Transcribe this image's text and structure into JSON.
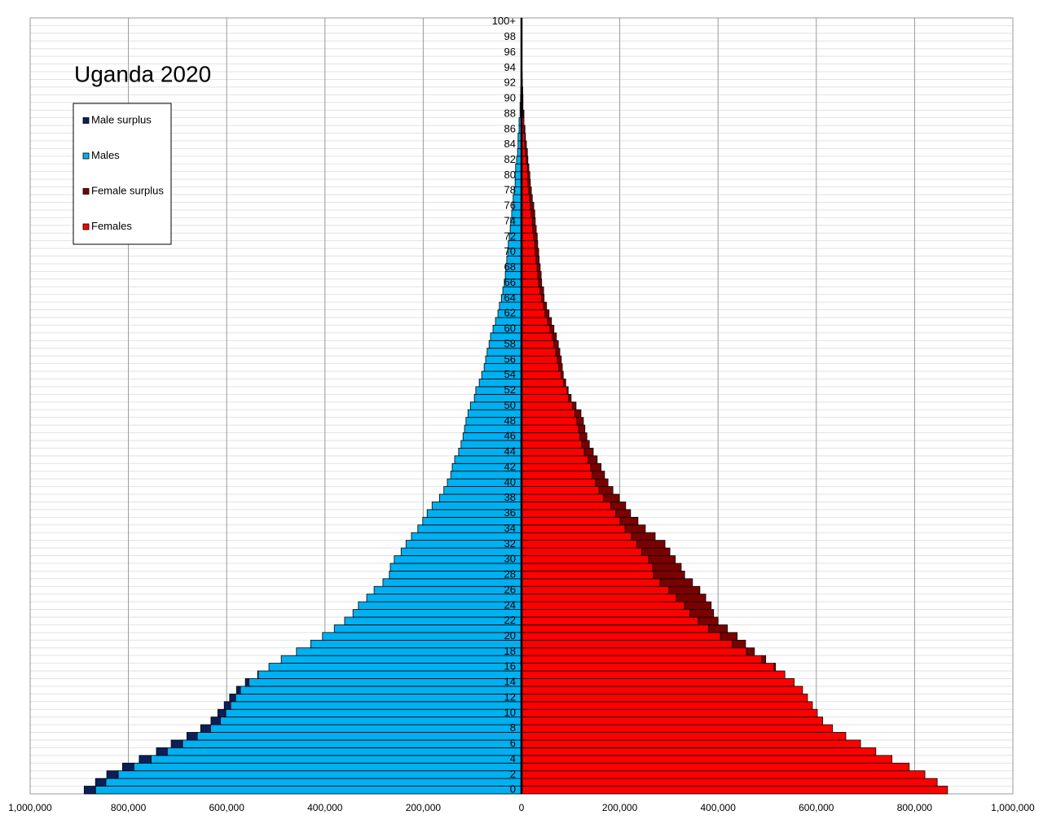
{
  "chart_data": {
    "type": "pyramid",
    "title": "Uganda 2020",
    "categories": [
      "0",
      null,
      "2",
      null,
      "4",
      null,
      "6",
      null,
      "8",
      null,
      "10",
      null,
      "12",
      null,
      "14",
      null,
      "16",
      null,
      "18",
      null,
      "20",
      null,
      "22",
      null,
      "24",
      null,
      "26",
      null,
      "28",
      null,
      "30",
      null,
      "32",
      null,
      "34",
      null,
      "36",
      null,
      "38",
      null,
      "40",
      null,
      "42",
      null,
      "44",
      null,
      "46",
      null,
      "48",
      null,
      "50",
      null,
      "52",
      null,
      "54",
      null,
      "56",
      null,
      "58",
      null,
      "60",
      null,
      "62",
      null,
      "64",
      null,
      "66",
      null,
      "68",
      null,
      "70",
      null,
      "72",
      null,
      "74",
      null,
      "76",
      null,
      "78",
      null,
      "80",
      null,
      "82",
      null,
      "84",
      null,
      "86",
      null,
      "88",
      null,
      "90",
      null,
      "92",
      null,
      "94",
      null,
      "96",
      null,
      "98",
      null,
      "100+"
    ],
    "series": [
      {
        "name": "Male surplus",
        "color": "#0a1f5c",
        "side": "left",
        "values": [
          23000,
          21000,
          23000,
          23000,
          24000,
          22000,
          23000,
          21000,
          20000,
          19000,
          16000,
          13000,
          12000,
          8000,
          7000,
          1000,
          0,
          0,
          0,
          0,
          0,
          0,
          0,
          0,
          0,
          0,
          0,
          0,
          0,
          0,
          0,
          0,
          0,
          0,
          0,
          0,
          0,
          0,
          0,
          0,
          0,
          0,
          0,
          0,
          0,
          0,
          0,
          0,
          0,
          0,
          0,
          0,
          0,
          0,
          0,
          0,
          0,
          0,
          0,
          0,
          0,
          0,
          0,
          0,
          0,
          0,
          0,
          0,
          0,
          0,
          0,
          0,
          0,
          0,
          0,
          0,
          0,
          0,
          0,
          0,
          0,
          0,
          0,
          0,
          0,
          0,
          0,
          0,
          0,
          0,
          0,
          0,
          0,
          0,
          0,
          0,
          0,
          0,
          0,
          0,
          0
        ]
      },
      {
        "name": "Males",
        "color": "#00b0f0",
        "side": "left",
        "values": [
          867000,
          846000,
          821000,
          789000,
          754000,
          721000,
          690000,
          660000,
          633000,
          613000,
          602000,
          592000,
          582000,
          572000,
          555000,
          536000,
          514000,
          489000,
          458000,
          429000,
          405000,
          381000,
          360000,
          343000,
          332000,
          315000,
          300000,
          282000,
          269000,
          267000,
          259000,
          245000,
          235000,
          224000,
          211000,
          201000,
          192000,
          182000,
          167000,
          158000,
          151000,
          144000,
          141000,
          136000,
          128000,
          123000,
          119000,
          116000,
          113000,
          109000,
          104000,
          96000,
          93000,
          86000,
          81000,
          76000,
          73000,
          70000,
          66000,
          63000,
          58000,
          53000,
          48000,
          45000,
          41000,
          38000,
          35000,
          33000,
          32000,
          30000,
          28000,
          27000,
          25000,
          23000,
          22000,
          20000,
          18000,
          17000,
          15000,
          13000,
          13000,
          12000,
          10000,
          8000,
          7000,
          7000,
          5000,
          5000,
          3000,
          3000,
          2000,
          1500,
          1000,
          700,
          500,
          300,
          200,
          100,
          100,
          0,
          100
        ]
      },
      {
        "name": "Female surplus",
        "color": "#7b0000",
        "side": "right",
        "values": [
          0,
          0,
          0,
          0,
          0,
          0,
          0,
          0,
          0,
          0,
          0,
          0,
          0,
          0,
          0,
          0,
          3000,
          8000,
          16000,
          27000,
          34000,
          38000,
          40000,
          48000,
          54000,
          60000,
          63000,
          66000,
          63000,
          58000,
          54000,
          57000,
          57000,
          48000,
          41000,
          36000,
          30000,
          30000,
          32000,
          28000,
          25000,
          25000,
          21000,
          18000,
          18000,
          15000,
          14000,
          13000,
          13000,
          12000,
          7000,
          5000,
          2000,
          4000,
          4000,
          7000,
          8000,
          8000,
          9000,
          8000,
          8000,
          8000,
          8000,
          6000,
          5000,
          7000,
          6000,
          7000,
          6000,
          6000,
          7000,
          6000,
          7000,
          7000,
          6000,
          7000,
          7000,
          5000,
          5000,
          5000,
          4000,
          3000,
          3000,
          4000,
          3000,
          1000,
          2000,
          0,
          2000,
          0,
          1000,
          1000,
          800,
          600,
          400,
          300,
          200,
          100,
          100,
          0,
          100
        ]
      },
      {
        "name": "Females",
        "color": "#ff0000",
        "side": "right",
        "values": [
          867000,
          846000,
          821000,
          789000,
          754000,
          721000,
          690000,
          660000,
          633000,
          613000,
          602000,
          592000,
          582000,
          572000,
          555000,
          536000,
          514000,
          489000,
          458000,
          429000,
          405000,
          381000,
          360000,
          343000,
          332000,
          315000,
          300000,
          282000,
          269000,
          267000,
          259000,
          245000,
          235000,
          224000,
          211000,
          201000,
          192000,
          182000,
          167000,
          158000,
          151000,
          144000,
          141000,
          136000,
          128000,
          123000,
          119000,
          116000,
          113000,
          109000,
          104000,
          96000,
          93000,
          86000,
          81000,
          76000,
          73000,
          70000,
          66000,
          63000,
          58000,
          53000,
          48000,
          45000,
          41000,
          38000,
          35000,
          33000,
          32000,
          30000,
          28000,
          27000,
          25000,
          23000,
          22000,
          20000,
          18000,
          17000,
          15000,
          13000,
          13000,
          12000,
          10000,
          8000,
          7000,
          7000,
          5000,
          5000,
          3000,
          3000,
          2000,
          1500,
          1000,
          700,
          500,
          300,
          200,
          100,
          100,
          0,
          100
        ]
      }
    ],
    "xlim": [
      -1000000,
      1000000
    ],
    "xticks": [
      {
        "value": -1000000,
        "label": "1,000,000"
      },
      {
        "value": -800000,
        "label": "800,000"
      },
      {
        "value": -600000,
        "label": "600,000"
      },
      {
        "value": -400000,
        "label": "400,000"
      },
      {
        "value": -200000,
        "label": "200,000"
      },
      0,
      {
        "value": 200000,
        "label": "200,000"
      },
      {
        "value": 400000,
        "label": "400,000"
      },
      {
        "value": 600000,
        "label": "600,000"
      },
      {
        "value": 800000,
        "label": "800,000"
      },
      {
        "value": 1000000,
        "label": "1,000,000"
      }
    ],
    "grid": true,
    "legend": "upper left"
  }
}
